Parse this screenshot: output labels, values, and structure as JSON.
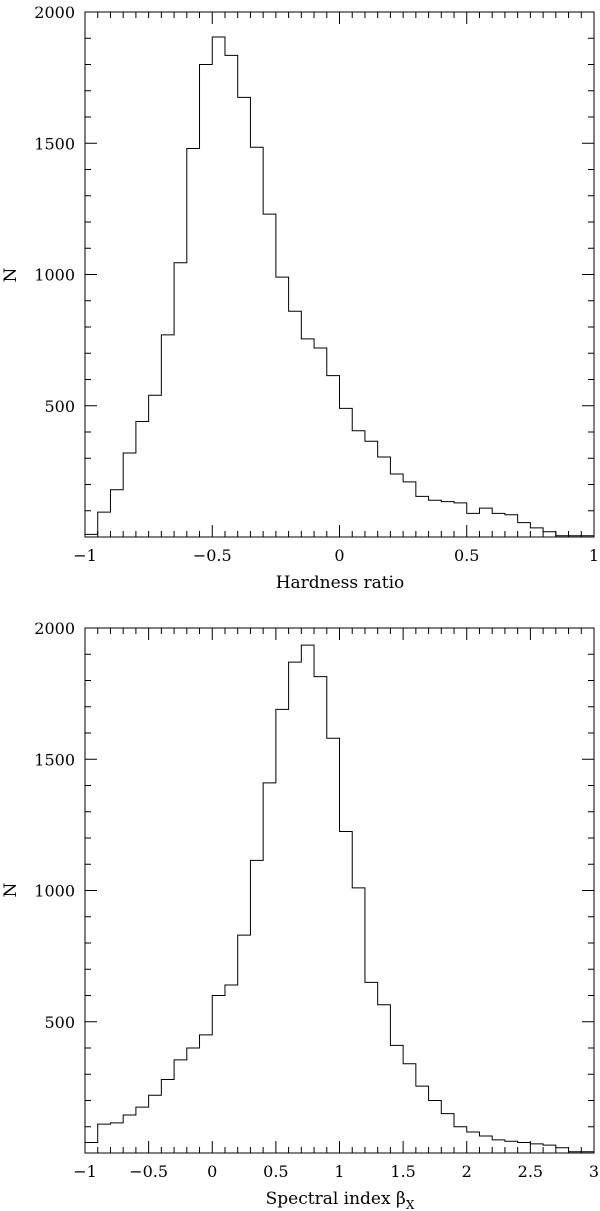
{
  "chart_data": [
    {
      "type": "bar",
      "style": "step-histogram",
      "xlabel": "Hardness ratio",
      "ylabel": "N",
      "xlim": [
        -1,
        1
      ],
      "ylim": [
        0,
        2000
      ],
      "xticks": [
        "−1",
        "−0.5",
        "0",
        "0.5",
        "1"
      ],
      "yticks": [
        "500",
        "1000",
        "1500",
        "2000"
      ],
      "bin_width": 0.05,
      "bin_edges_start": -1,
      "values": [
        10,
        95,
        180,
        320,
        440,
        540,
        770,
        1045,
        1480,
        1800,
        1905,
        1835,
        1675,
        1485,
        1230,
        990,
        860,
        755,
        720,
        615,
        490,
        405,
        365,
        305,
        240,
        210,
        155,
        140,
        135,
        130,
        90,
        110,
        90,
        85,
        55,
        35,
        20,
        5,
        5,
        5
      ],
      "grid": false,
      "legend": "none"
    },
    {
      "type": "bar",
      "style": "step-histogram",
      "xlabel": "Spectral index β",
      "xlabel_subscript": "X",
      "ylabel": "N",
      "xlim": [
        -1,
        3
      ],
      "ylim": [
        0,
        2000
      ],
      "xticks": [
        "−1",
        "−0.5",
        "0",
        "0.5",
        "1",
        "1.5",
        "2",
        "2.5",
        "3"
      ],
      "yticks": [
        "500",
        "1000",
        "1500",
        "2000"
      ],
      "bin_width": 0.1,
      "bin_edges_start": -1,
      "values": [
        40,
        110,
        115,
        145,
        175,
        220,
        280,
        355,
        400,
        450,
        600,
        640,
        830,
        1115,
        1410,
        1690,
        1870,
        1935,
        1815,
        1580,
        1225,
        1010,
        650,
        565,
        410,
        340,
        255,
        200,
        150,
        100,
        80,
        65,
        50,
        45,
        40,
        35,
        30,
        20,
        5,
        5
      ],
      "grid": false,
      "legend": "none"
    }
  ]
}
